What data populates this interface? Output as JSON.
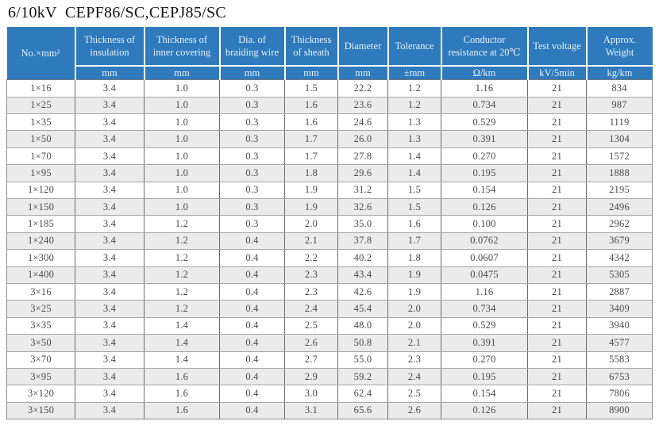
{
  "title": "6/10kV  CEPF86/SC,CEPJ85/SC",
  "colors": {
    "header_bg": "#2e7abd",
    "header_text": "#e9f1f9",
    "stripe": "#ebebeb",
    "body_text": "#4a4a4a"
  },
  "table": {
    "columns": [
      {
        "label": "No.×mm²",
        "unit": null
      },
      {
        "label": "Thickness of insulation",
        "unit": "mm"
      },
      {
        "label": "Thickness of inner covering",
        "unit": "mm"
      },
      {
        "label": "Dia. of braiding wire",
        "unit": "mm"
      },
      {
        "label": "Thickness of sheath",
        "unit": "mm"
      },
      {
        "label": "Diameter",
        "unit": "mm"
      },
      {
        "label": "Tolerance",
        "unit": "±mm"
      },
      {
        "label": "Conductor resistance at 20℃",
        "unit": "Ω/km"
      },
      {
        "label": "Test voltage",
        "unit": "kV/5min"
      },
      {
        "label": "Approx. Weight",
        "unit": "kg/km"
      }
    ],
    "rows": [
      [
        "1×16",
        "3.4",
        "1.0",
        "0.3",
        "1.5",
        "22.2",
        "1.2",
        "1.16",
        "21",
        "834"
      ],
      [
        "1×25",
        "3.4",
        "1.0",
        "0.3",
        "1.6",
        "23.6",
        "1.2",
        "0.734",
        "21",
        "987"
      ],
      [
        "1×35",
        "3.4",
        "1.0",
        "0.3",
        "1.6",
        "24.6",
        "1.3",
        "0.529",
        "21",
        "1119"
      ],
      [
        "1×50",
        "3.4",
        "1.0",
        "0.3",
        "1.7",
        "26.0",
        "1.3",
        "0.391",
        "21",
        "1304"
      ],
      [
        "1×70",
        "3.4",
        "1.0",
        "0.3",
        "1.7",
        "27.8",
        "1.4",
        "0.270",
        "21",
        "1572"
      ],
      [
        "1×95",
        "3.4",
        "1.0",
        "0.3",
        "1.8",
        "29.6",
        "1.4",
        "0.195",
        "21",
        "1888"
      ],
      [
        "1×120",
        "3.4",
        "1.0",
        "0.3",
        "1.9",
        "31.2",
        "1.5",
        "0.154",
        "21",
        "2195"
      ],
      [
        "1×150",
        "3.4",
        "1.0",
        "0.3",
        "1.9",
        "32.6",
        "1.5",
        "0.126",
        "21",
        "2496"
      ],
      [
        "1×185",
        "3.4",
        "1.2",
        "0.3",
        "2.0",
        "35.0",
        "1.6",
        "0.100",
        "21",
        "2962"
      ],
      [
        "1×240",
        "3.4",
        "1.2",
        "0.4",
        "2.1",
        "37.8",
        "1.7",
        "0.0762",
        "21",
        "3679"
      ],
      [
        "1×300",
        "3.4",
        "1.2",
        "0.4",
        "2.2",
        "40.2",
        "1.8",
        "0.0607",
        "21",
        "4342"
      ],
      [
        "1×400",
        "3.4",
        "1.2",
        "0.4",
        "2.3",
        "43.4",
        "1.9",
        "0.0475",
        "21",
        "5305"
      ],
      [
        "3×16",
        "3.4",
        "1.2",
        "0.4",
        "2.3",
        "42.6",
        "1.9",
        "1.16",
        "21",
        "2887"
      ],
      [
        "3×25",
        "3.4",
        "1.2",
        "0.4",
        "2.4",
        "45.4",
        "2.0",
        "0.734",
        "21",
        "3409"
      ],
      [
        "3×35",
        "3.4",
        "1.4",
        "0.4",
        "2.5",
        "48.0",
        "2.0",
        "0.529",
        "21",
        "3940"
      ],
      [
        "3×50",
        "3.4",
        "1.4",
        "0.4",
        "2.6",
        "50.8",
        "2.1",
        "0.391",
        "21",
        "4577"
      ],
      [
        "3×70",
        "3.4",
        "1.4",
        "0.4",
        "2.7",
        "55.0",
        "2.3",
        "0.270",
        "21",
        "5583"
      ],
      [
        "3×95",
        "3.4",
        "1.6",
        "0.4",
        "2.9",
        "59.2",
        "2.4",
        "0.195",
        "21",
        "6753"
      ],
      [
        "3×120",
        "3.4",
        "1.6",
        "0.4",
        "3.0",
        "62.4",
        "2.5",
        "0.154",
        "21",
        "7806"
      ],
      [
        "3×150",
        "3.4",
        "1.6",
        "0.4",
        "3.1",
        "65.6",
        "2.6",
        "0.126",
        "21",
        "8900"
      ]
    ]
  }
}
